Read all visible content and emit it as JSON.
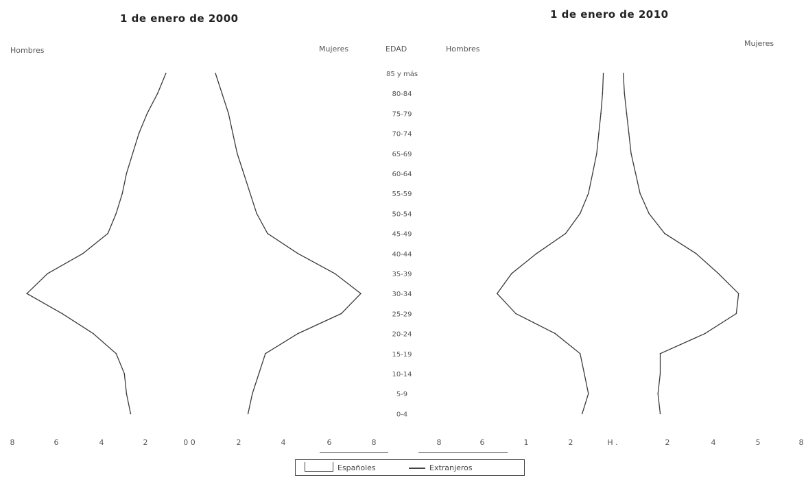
{
  "chart_data": [
    {
      "type": "line",
      "title": "1 de enero de 2000",
      "left_label": "Hombres",
      "right_label": "Mujeres",
      "age_header": "EDAD",
      "age_groups": [
        "85 y más",
        "80-84",
        "75-79",
        "70-74",
        "65-69",
        "60-64",
        "55-59",
        "50-54",
        "45-49",
        "40-44",
        "35-39",
        "30-34",
        "25-29",
        "20-24",
        "15-19",
        "10-14",
        "5-9",
        "0-4"
      ],
      "x_ticks_left": [
        "8",
        "6",
        "4",
        "2"
      ],
      "x_center": "0 0",
      "x_ticks_right": [
        "2",
        "4",
        "6",
        "8"
      ],
      "xlim": [
        0,
        8
      ],
      "series": [
        {
          "name": "Españoles",
          "side": "hombres",
          "values": [
            0.6,
            1.0,
            1.5,
            1.9,
            2.2,
            2.5,
            2.7,
            3.0,
            3.4,
            4.6,
            6.3,
            7.3,
            5.6,
            4.1,
            3.0,
            2.6,
            2.5,
            2.3
          ]
        },
        {
          "name": "Españoles",
          "side": "mujeres",
          "values": [
            0.7,
            1.0,
            1.3,
            1.5,
            1.7,
            2.0,
            2.3,
            2.6,
            3.1,
            4.5,
            6.2,
            7.4,
            6.5,
            4.5,
            3.0,
            2.7,
            2.4,
            2.2
          ]
        }
      ]
    },
    {
      "type": "line",
      "title": "1 de enero de 2010",
      "left_label": "Hombres",
      "right_label": "Mujeres",
      "age_header": "",
      "age_groups": [
        "85 y más",
        "80-84",
        "75-79",
        "70-74",
        "65-69",
        "60-64",
        "55-59",
        "50-54",
        "45-49",
        "40-44",
        "35-39",
        "30-34",
        "25-29",
        "20-24",
        "15-19",
        "10-14",
        "5-9",
        "0-4"
      ],
      "x_ticks_left": [
        "8",
        "6",
        "1",
        "2"
      ],
      "x_center": "H .",
      "x_ticks_right": [
        "2",
        "4",
        "5",
        "8"
      ],
      "xlim": [
        0,
        8
      ],
      "series": [
        {
          "name": "Extranjeros",
          "side": "hombres",
          "values": [
            0.08,
            0.12,
            0.2,
            0.3,
            0.4,
            0.6,
            0.8,
            1.2,
            1.9,
            3.3,
            4.5,
            5.2,
            4.3,
            2.4,
            1.2,
            1.0,
            0.8,
            1.1
          ]
        },
        {
          "name": "Extranjeros",
          "side": "mujeres",
          "values": [
            0.05,
            0.1,
            0.2,
            0.3,
            0.4,
            0.6,
            0.8,
            1.2,
            1.9,
            3.3,
            4.3,
            5.2,
            5.1,
            3.7,
            1.7,
            1.7,
            1.6,
            1.7
          ]
        }
      ]
    }
  ],
  "legend": {
    "item1": "Españoles",
    "item2": "Extranjeros"
  },
  "colors": {
    "line": "#3a3a3a",
    "text": "#555555"
  }
}
